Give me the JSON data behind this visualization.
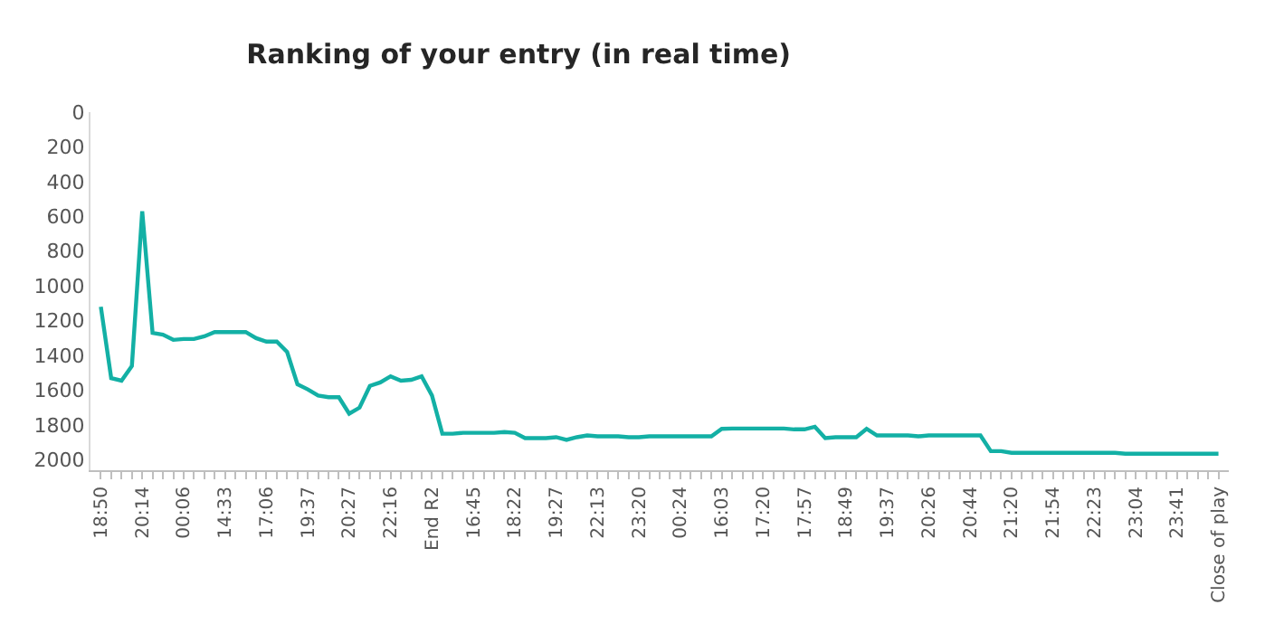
{
  "chart_data": {
    "type": "line",
    "title": "Ranking of your entry (in real time)",
    "categories": [
      "18:50",
      null,
      null,
      null,
      "20:14",
      null,
      null,
      null,
      "00:06",
      null,
      null,
      null,
      "14:33",
      null,
      null,
      null,
      "17:06",
      null,
      null,
      null,
      "19:37",
      null,
      null,
      null,
      "20:27",
      null,
      null,
      null,
      "22:16",
      null,
      null,
      null,
      "End R2",
      null,
      null,
      null,
      "16:45",
      null,
      null,
      null,
      "18:22",
      null,
      null,
      null,
      "19:27",
      null,
      null,
      null,
      "22:13",
      null,
      null,
      null,
      "23:20",
      null,
      null,
      null,
      "00:24",
      null,
      null,
      null,
      "16:03",
      null,
      null,
      null,
      "17:20",
      null,
      null,
      null,
      "17:57",
      null,
      null,
      null,
      "18:49",
      null,
      null,
      null,
      "19:37",
      null,
      null,
      null,
      "20:26",
      null,
      null,
      null,
      "20:44",
      null,
      null,
      null,
      "21:20",
      null,
      null,
      null,
      "21:54",
      null,
      null,
      null,
      "22:23",
      null,
      null,
      null,
      "23:04",
      null,
      null,
      null,
      "23:41",
      null,
      null,
      null,
      "Close of play"
    ],
    "series": [
      {
        "color": "#13b0a5",
        "values": [
          1120,
          1530,
          1545,
          1460,
          570,
          1270,
          1280,
          1310,
          1305,
          1305,
          1290,
          1265,
          1265,
          1265,
          1265,
          1300,
          1320,
          1320,
          1380,
          1565,
          1595,
          1630,
          1640,
          1640,
          1735,
          1700,
          1575,
          1555,
          1520,
          1545,
          1540,
          1520,
          1630,
          1850,
          1850,
          1845,
          1845,
          1845,
          1845,
          1840,
          1845,
          1875,
          1875,
          1875,
          1870,
          1885,
          1870,
          1860,
          1865,
          1865,
          1865,
          1870,
          1870,
          1865,
          1865,
          1865,
          1865,
          1865,
          1865,
          1865,
          1822,
          1820,
          1820,
          1820,
          1820,
          1820,
          1820,
          1825,
          1825,
          1810,
          1875,
          1870,
          1870,
          1870,
          1822,
          1860,
          1860,
          1860,
          1860,
          1865,
          1860,
          1860,
          1860,
          1860,
          1860,
          1860,
          1950,
          1950,
          1960,
          1960,
          1960,
          1960,
          1960,
          1960,
          1960,
          1960,
          1960,
          1960,
          1960,
          1965,
          1965,
          1965,
          1965,
          1965,
          1965,
          1965,
          1965,
          1965,
          1965
        ]
      }
    ],
    "ylim": [
      2060,
      0
    ],
    "yticks": [
      0,
      200,
      400,
      600,
      800,
      1000,
      1200,
      1400,
      1600,
      1800,
      2000
    ],
    "marker": "none",
    "line_style": "solid"
  }
}
